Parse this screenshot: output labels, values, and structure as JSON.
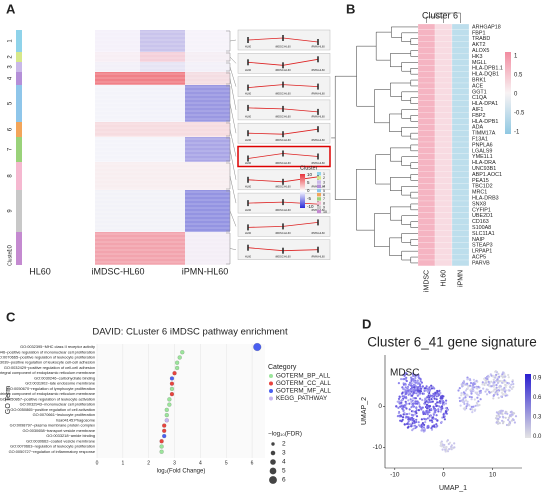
{
  "panels": {
    "A": {
      "label": "A",
      "columns": [
        "HL60",
        "iMDSC-HL60",
        "iPMN-HL60"
      ],
      "cluster_axis": "Cluster",
      "clusters": [
        "1",
        "2",
        "3",
        "4",
        "5",
        "6",
        "7",
        "8",
        "9",
        "10"
      ],
      "legend_title": "Cluster",
      "colorbar_ticks": [
        10,
        5,
        0,
        -5,
        -10
      ],
      "miniplot_labels": [
        "HL60",
        "iMDSC-HL60",
        "iPMN-HL60"
      ]
    },
    "B": {
      "label": "B",
      "title": "Cluster 6",
      "columns": [
        "iMDSC",
        "HL60",
        "iPMN"
      ],
      "colorbar_ticks": [
        1,
        0.5,
        0,
        -0.5,
        -1
      ],
      "genes": [
        "ARHGAP18",
        "FBP1",
        "TRABD",
        "AKT2",
        "ALOX5",
        "HK3",
        "MGLL",
        "HLA-DPB1.1",
        "HLA-DQB1",
        "BRK1",
        "ACE",
        "GGT1",
        "C1QA",
        "HLA-DPA1",
        "AIF1",
        "FBP2",
        "HLA-DPB1",
        "ADA",
        "TIMM17A",
        "F13A1",
        "PNPLA6",
        "LGALS9",
        "YME1L1",
        "HLA-DRA",
        "UNC93B1",
        "ABP1.AOC1",
        "PEA15",
        "TBC1D2",
        "MRC1",
        "HLA-DRB3",
        "SNX8",
        "CYFIP1",
        "UBE2D1",
        "CD163",
        "S100A8",
        "SLC11A1",
        "NAIP",
        "STEAP3",
        "LRPAP1",
        "ACP5",
        "PARVB"
      ]
    },
    "C": {
      "label": "C",
      "type": "dot",
      "title": "DAVID: CLuster 6 iMDSC pathway enrichment",
      "x_label": "log₂(Fold Change)",
      "y_label": "GO Term",
      "legend_title": "Category",
      "size_title": "−log₁₀(FDR)",
      "size_ticks": [
        2,
        3,
        4,
        5,
        6
      ],
      "xlim": [
        0,
        6.5
      ],
      "xticks": [
        0,
        1,
        2,
        3,
        4,
        5,
        6
      ],
      "categories_legend": [
        {
          "name": "GOTERM_BP_ALL",
          "color": "#9be59b"
        },
        {
          "name": "GOTERM_CC_ALL",
          "color": "#e8433d"
        },
        {
          "name": "GOTERM_MF_ALL",
          "color": "#4a5ff0"
        },
        {
          "name": "KEGG_PATHWAY",
          "color": "#c6b4f2"
        }
      ],
      "terms": [
        "GO:0032395~MHC class II receptor activity",
        "GO:0032946~positive regulation of mononuclear cell proliferation",
        "GO:0070665~positive regulation of leukocyte proliferation",
        "GO:1903039~positive regulation of leukocyte cell-cell adhesion",
        "GO:0032429~positive regulation of cell-cell adhesion",
        "GO:0030176~integral component of endoplasmic reticulum membrane",
        "GO:0030246~carbohydrate binding",
        "GO:0031902~late endosome membrane",
        "GO:0050670~regulation of lymphocyte proliferation",
        "GO:0031227~intrinsic component of endoplasmic reticulum membrane",
        "GO:0050867~positive regulation of leukocyte activation",
        "GO:0032943~mononuclear cell proliferation",
        "GO:0050865~positive regulation of cell activation",
        "GO:0070661~leukocyte proliferation",
        "hsa04145:Phagosome",
        "GO:0098797~plasma membrane protein complex",
        "GO:0030658~transport vesicle membrane",
        "GO:0033218~amide binding",
        "GO:0030662~coated vesicle membrane",
        "GO:0070663~regulation of leukocyte proliferation",
        "GO:0050727~regulation of inflammatory response"
      ],
      "values": [
        6.2,
        3.3,
        3.2,
        3.1,
        3.1,
        3.0,
        2.9,
        2.9,
        2.9,
        2.9,
        2.8,
        2.8,
        2.7,
        2.7,
        2.7,
        2.6,
        2.6,
        2.6,
        2.5,
        2.5,
        2.5
      ],
      "category": [
        2,
        0,
        0,
        0,
        0,
        1,
        2,
        1,
        0,
        1,
        0,
        0,
        0,
        0,
        3,
        1,
        1,
        2,
        1,
        0,
        0
      ],
      "fdr": [
        6,
        2.5,
        2.5,
        2.5,
        2.5,
        2.5,
        2.5,
        2.5,
        2.5,
        2.5,
        2.5,
        2.5,
        2.5,
        2.5,
        2.5,
        2.5,
        2.5,
        2.5,
        2.5,
        2.5,
        2.5
      ]
    },
    "D": {
      "label": "D",
      "title": "Cluster 6_41 gene signature",
      "annotation": "MDSC",
      "x_label": "UMAP_1",
      "y_label": "UMAP_2",
      "xlim": [
        -12,
        16
      ],
      "ylim": [
        -15,
        12.5
      ],
      "xticks": [
        -10,
        0,
        10
      ],
      "yticks": [
        0,
        -10
      ],
      "colorbar_ticks": [
        0.9,
        0.6,
        0.3,
        {
          "value": 0,
          "label": "0.0"
        }
      ]
    }
  }
}
